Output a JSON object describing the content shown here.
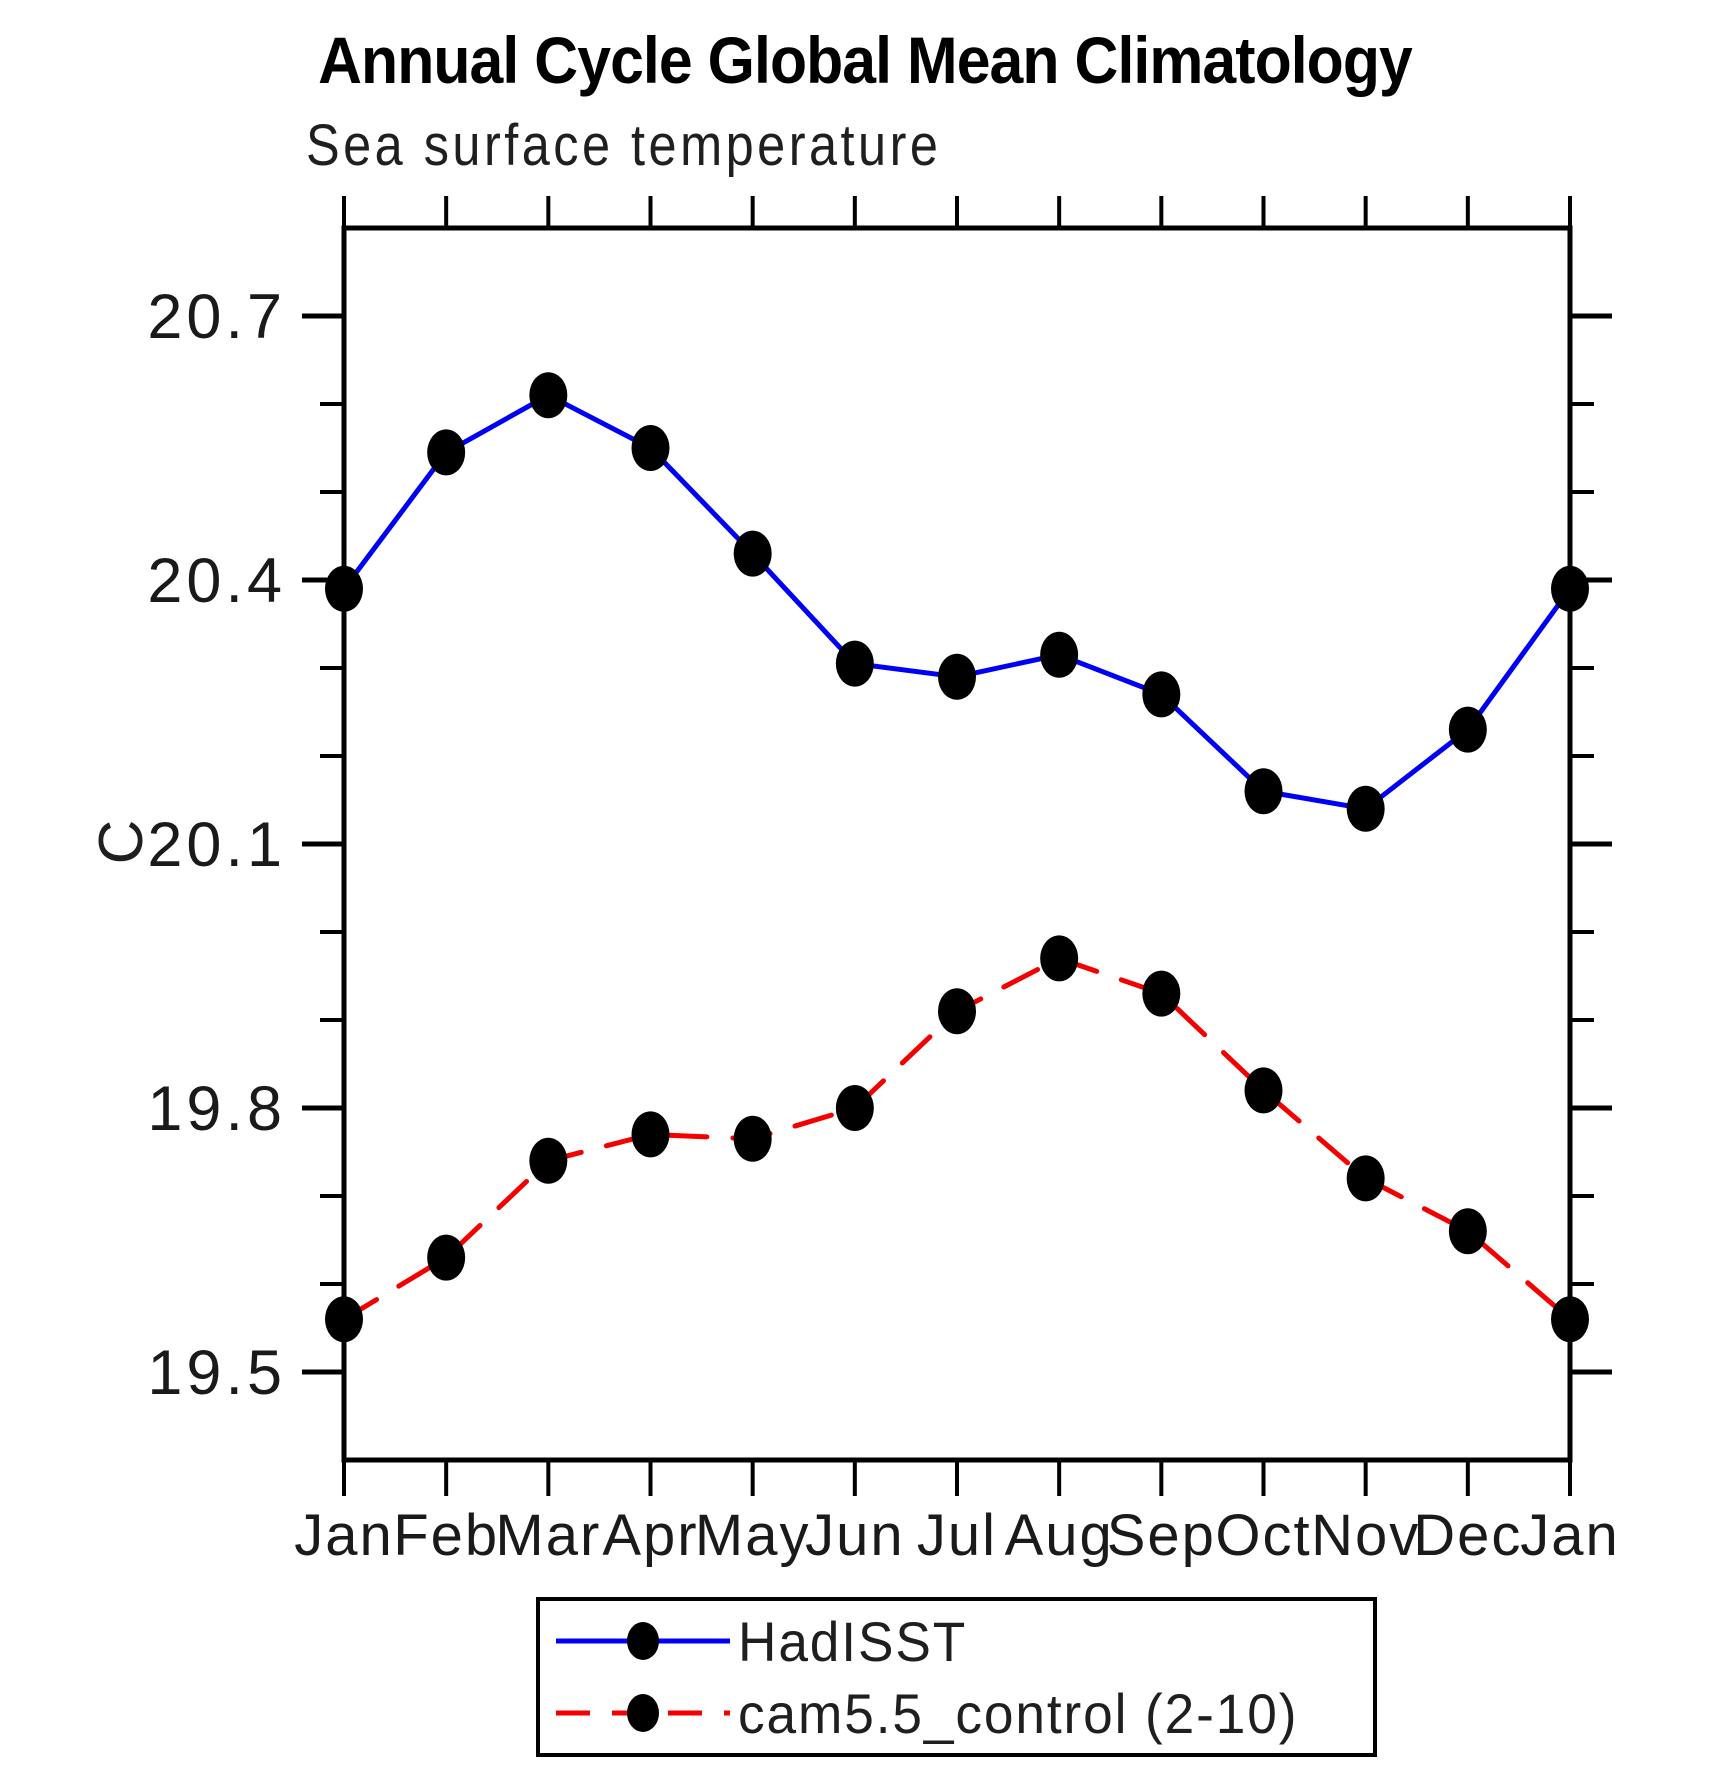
{
  "title": "Annual Cycle Global Mean Climatology",
  "subtitle": "Sea surface temperature",
  "colors": {
    "hadisst_line": "#0000f5",
    "cam_line": "#f50000",
    "marker": "#000000",
    "axis": "#000000"
  },
  "chart_data": {
    "type": "line",
    "title": "Annual Cycle Global Mean Climatology",
    "subtitle": "Sea surface temperature",
    "xlabel": "",
    "ylabel": "C",
    "categories": [
      "Jan",
      "Feb",
      "Mar",
      "Apr",
      "May",
      "Jun",
      "Jul",
      "Aug",
      "Sep",
      "Oct",
      "Nov",
      "Dec",
      "Jan"
    ],
    "y_ticks_major": [
      19.5,
      19.8,
      20.1,
      20.4,
      20.7
    ],
    "y_tick_labels": [
      "19.5",
      "19.8",
      "20.1",
      "20.4",
      "20.7"
    ],
    "y_minor_step": 0.1,
    "ylim": [
      19.4,
      20.8
    ],
    "grid": false,
    "legend_position": "bottom",
    "series": [
      {
        "name": "HadISST",
        "color": "#0000f5",
        "style": "solid",
        "marker": "filled-circle",
        "marker_color": "#000000",
        "values": [
          20.39,
          20.545,
          20.61,
          20.55,
          20.43,
          20.305,
          20.29,
          20.315,
          20.27,
          20.16,
          20.14,
          20.23,
          20.39
        ]
      },
      {
        "name": "cam5.5_control (2-10)",
        "color": "#f50000",
        "style": "dashed",
        "marker": "filled-circle",
        "marker_color": "#000000",
        "values": [
          19.56,
          19.63,
          19.74,
          19.77,
          19.765,
          19.8,
          19.91,
          19.97,
          19.93,
          19.82,
          19.72,
          19.66,
          19.56
        ]
      }
    ]
  }
}
